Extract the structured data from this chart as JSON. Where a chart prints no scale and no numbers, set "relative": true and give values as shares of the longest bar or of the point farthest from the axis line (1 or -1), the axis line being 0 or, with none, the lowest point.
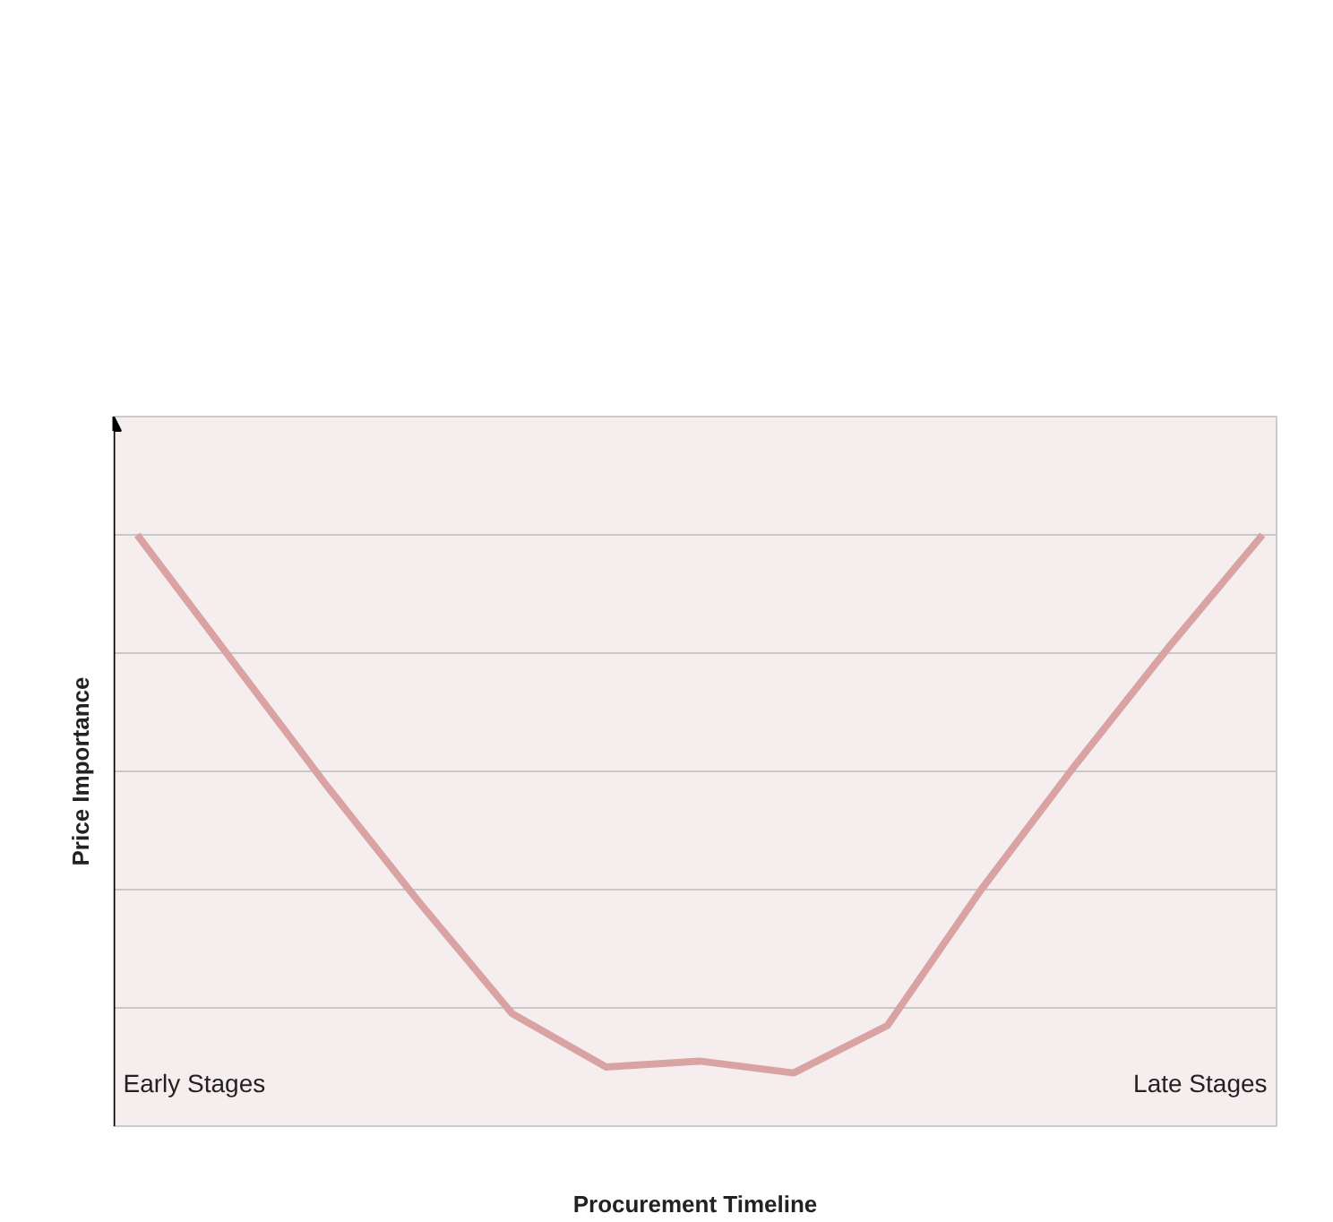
{
  "chart_data": {
    "type": "line",
    "relative": true,
    "xlabel": "Procurement Timeline",
    "ylabel": "Price Importance",
    "annotations": [
      "Early Stages",
      "Late Stages"
    ],
    "categories": [
      null,
      null,
      null,
      null,
      null,
      null,
      null,
      null,
      null,
      null,
      null,
      null,
      null
    ],
    "series": [
      {
        "color": "#d9a3a3",
        "values": [
          1,
          0.79,
          0.58,
          0.38,
          0.19,
          0.1,
          0.11,
          0.09,
          0.17,
          0.4,
          0.61,
          0.81,
          1
        ]
      }
    ],
    "grid": "y",
    "marker": "none",
    "line_style": "solid"
  }
}
